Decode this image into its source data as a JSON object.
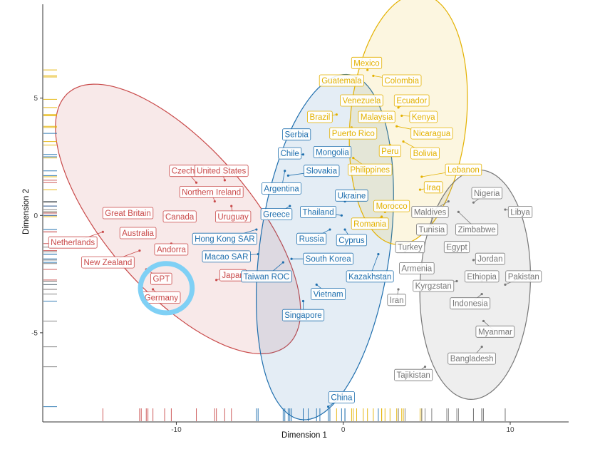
{
  "chart_data": {
    "type": "scatter",
    "xlabel": "Dimension 1",
    "ylabel": "Dimension 2",
    "xlim": [
      -18,
      13.5
    ],
    "ylim": [
      -8.8,
      9
    ],
    "x_ticks": [
      -10,
      0,
      10
    ],
    "y_ticks": [
      -5,
      0,
      5
    ],
    "grid": false,
    "colors": {
      "red": "#c94a4a",
      "blue": "#1f6fae",
      "yellow": "#e3b100",
      "gray": "#777777",
      "highlight": "#7fd0f5"
    },
    "clusters": [
      {
        "color": "red",
        "cx": -9.9,
        "cy": -0.15,
        "rx": 8.6,
        "ry": 3.6,
        "angle_deg": -35
      },
      {
        "color": "blue",
        "cx": -1.1,
        "cy": -1.35,
        "rx": 7.5,
        "ry": 3.85,
        "angle_deg": 77
      },
      {
        "color": "yellow",
        "cx": 3.9,
        "cy": 4.1,
        "rx": 5.4,
        "ry": 3.45,
        "angle_deg": 79
      },
      {
        "color": "gray",
        "cx": 7.9,
        "cy": -2.95,
        "rx": 4.9,
        "ry": 3.3,
        "angle_deg": 85
      }
    ],
    "highlight": {
      "label": "GPT",
      "cx": -10.6,
      "cy": -3.1,
      "rx": 1.55,
      "ry": 1.05
    },
    "points": [
      {
        "label": "Czechia",
        "color": "red",
        "x": -8.8,
        "y": 1.4,
        "lx": -9.4,
        "ly": 1.9
      },
      {
        "label": "United States",
        "color": "red",
        "x": -7.1,
        "y": 1.5,
        "lx": -7.3,
        "ly": 1.9
      },
      {
        "label": "Northern Ireland",
        "color": "red",
        "x": -7.7,
        "y": 0.6,
        "lx": -7.9,
        "ly": 1.0
      },
      {
        "label": "Great Britain",
        "color": "red",
        "x": -12.1,
        "y": 0.1,
        "lx": -12.9,
        "ly": 0.1
      },
      {
        "label": "Canada",
        "color": "red",
        "x": -10.7,
        "y": 0.0,
        "lx": -9.8,
        "ly": -0.05
      },
      {
        "label": "Uruguay",
        "color": "red",
        "x": -6.7,
        "y": 0.4,
        "lx": -6.6,
        "ly": -0.05
      },
      {
        "label": "Australia",
        "color": "red",
        "x": -11.7,
        "y": -0.7,
        "lx": -12.3,
        "ly": -0.75
      },
      {
        "label": "Netherlands",
        "color": "red",
        "x": -14.4,
        "y": -0.7,
        "lx": -16.2,
        "ly": -1.15
      },
      {
        "label": "Andorra",
        "color": "red",
        "x": -10.3,
        "y": -1.2,
        "lx": -10.3,
        "ly": -1.45
      },
      {
        "label": "New Zealand",
        "color": "red",
        "x": -12.2,
        "y": -1.5,
        "lx": -14.1,
        "ly": -2.0
      },
      {
        "label": "GPT",
        "color": "red",
        "x": -11.8,
        "y": -2.3,
        "lx": -10.9,
        "ly": -2.7
      },
      {
        "label": "Germany",
        "color": "red",
        "x": -11.4,
        "y": -3.15,
        "lx": -10.9,
        "ly": -3.5
      },
      {
        "label": "Japan",
        "color": "red",
        "x": -7.6,
        "y": -2.75,
        "lx": -6.6,
        "ly": -2.55
      },
      {
        "label": "Serbia",
        "color": "blue",
        "x": -2.1,
        "y": 3.5,
        "lx": -2.8,
        "ly": 3.45
      },
      {
        "label": "Mongolia",
        "color": "blue",
        "x": -1.4,
        "y": 2.5,
        "lx": -0.65,
        "ly": 2.7
      },
      {
        "label": "Chile",
        "color": "blue",
        "x": -2.4,
        "y": 2.6,
        "lx": -3.2,
        "ly": 2.65
      },
      {
        "label": "Slovakia",
        "color": "blue",
        "x": -3.3,
        "y": 1.7,
        "lx": -1.3,
        "ly": 1.9
      },
      {
        "label": "Argentina",
        "color": "blue",
        "x": -3.5,
        "y": 1.9,
        "lx": -3.7,
        "ly": 1.15
      },
      {
        "label": "Ukraine",
        "color": "blue",
        "x": 0.1,
        "y": 0.6,
        "lx": 0.5,
        "ly": 0.85
      },
      {
        "label": "Greece",
        "color": "blue",
        "x": -3.2,
        "y": 0.4,
        "lx": -4.0,
        "ly": 0.05
      },
      {
        "label": "Thailand",
        "color": "blue",
        "x": -0.1,
        "y": 0.0,
        "lx": -1.5,
        "ly": 0.15
      },
      {
        "label": "Hong Kong SAR",
        "color": "blue",
        "x": -5.2,
        "y": -0.6,
        "lx": -7.1,
        "ly": -1.0
      },
      {
        "label": "Russia",
        "color": "blue",
        "x": -0.8,
        "y": -0.6,
        "lx": -1.9,
        "ly": -1.0
      },
      {
        "label": "Cyprus",
        "color": "blue",
        "x": 0.1,
        "y": -0.6,
        "lx": 0.5,
        "ly": -1.05
      },
      {
        "label": "Macao SAR",
        "color": "blue",
        "x": -5.1,
        "y": -1.65,
        "lx": -7.0,
        "ly": -1.75
      },
      {
        "label": "South Korea",
        "color": "blue",
        "x": -3.1,
        "y": -1.85,
        "lx": -0.9,
        "ly": -1.85
      },
      {
        "label": "Taiwan ROC",
        "color": "blue",
        "x": -3.6,
        "y": -2.0,
        "lx": -4.6,
        "ly": -2.6
      },
      {
        "label": "Kazakhstan",
        "color": "blue",
        "x": 2.1,
        "y": -1.65,
        "lx": 1.6,
        "ly": -2.6
      },
      {
        "label": "Vietnam",
        "color": "blue",
        "x": -1.6,
        "y": -2.95,
        "lx": -0.9,
        "ly": -3.35
      },
      {
        "label": "Singapore",
        "color": "blue",
        "x": -2.4,
        "y": -3.65,
        "lx": -2.4,
        "ly": -4.25
      },
      {
        "label": "China",
        "color": "blue",
        "x": -0.9,
        "y": -8.15,
        "lx": -0.1,
        "ly": -7.75
      },
      {
        "label": "Mexico",
        "color": "yellow",
        "x": 1.45,
        "y": 6.2,
        "lx": 1.4,
        "ly": 6.5
      },
      {
        "label": "Guatemala",
        "color": "yellow",
        "x": 0.8,
        "y": 5.9,
        "lx": -0.1,
        "ly": 5.75
      },
      {
        "label": "Colombia",
        "color": "yellow",
        "x": 1.8,
        "y": 5.95,
        "lx": 3.5,
        "ly": 5.75
      },
      {
        "label": "Venezuela",
        "color": "yellow",
        "x": 1.2,
        "y": 4.95,
        "lx": 1.1,
        "ly": 4.9
      },
      {
        "label": "Ecuador",
        "color": "yellow",
        "x": 3.3,
        "y": 4.6,
        "lx": 4.1,
        "ly": 4.9
      },
      {
        "label": "Brazil",
        "color": "yellow",
        "x": -0.4,
        "y": 4.3,
        "lx": -1.4,
        "ly": 4.2
      },
      {
        "label": "Malaysia",
        "color": "yellow",
        "x": 2.3,
        "y": 4.25,
        "lx": 2.0,
        "ly": 4.2
      },
      {
        "label": "Kenya",
        "color": "yellow",
        "x": 3.5,
        "y": 4.25,
        "lx": 4.8,
        "ly": 4.2
      },
      {
        "label": "Puerto Rico",
        "color": "yellow",
        "x": 0.5,
        "y": 3.75,
        "lx": 0.6,
        "ly": 3.5
      },
      {
        "label": "Nicaragua",
        "color": "yellow",
        "x": 3.2,
        "y": 3.8,
        "lx": 5.3,
        "ly": 3.5
      },
      {
        "label": "Peru",
        "color": "yellow",
        "x": 2.8,
        "y": 3.0,
        "lx": 2.8,
        "ly": 2.75
      },
      {
        "label": "Bolivia",
        "color": "yellow",
        "x": 3.6,
        "y": 3.15,
        "lx": 4.9,
        "ly": 2.65
      },
      {
        "label": "Philippines",
        "color": "yellow",
        "x": 0.6,
        "y": 2.45,
        "lx": 1.6,
        "ly": 1.95
      },
      {
        "label": "Lebanon",
        "color": "yellow",
        "x": 4.7,
        "y": 1.65,
        "lx": 7.2,
        "ly": 1.95
      },
      {
        "label": "Iraq",
        "color": "yellow",
        "x": 4.6,
        "y": 1.1,
        "lx": 5.4,
        "ly": 1.2
      },
      {
        "label": "Morocco",
        "color": "yellow",
        "x": 2.5,
        "y": 0.15,
        "lx": 2.9,
        "ly": 0.4
      },
      {
        "label": "Romania",
        "color": "yellow",
        "x": 2.3,
        "y": -0.05,
        "lx": 1.6,
        "ly": -0.35
      },
      {
        "label": "Nigeria",
        "color": "gray",
        "x": 7.8,
        "y": 0.55,
        "lx": 8.6,
        "ly": 0.95
      },
      {
        "label": "Libya",
        "color": "gray",
        "x": 9.7,
        "y": 0.25,
        "lx": 10.6,
        "ly": 0.15
      },
      {
        "label": "Maldives",
        "color": "gray",
        "x": 6.3,
        "y": 0.6,
        "lx": 5.2,
        "ly": 0.15
      },
      {
        "label": "Tunisia",
        "color": "gray",
        "x": 5.3,
        "y": 0.15,
        "lx": 5.3,
        "ly": -0.6
      },
      {
        "label": "Zimbabwe",
        "color": "gray",
        "x": 6.9,
        "y": 0.15,
        "lx": 8.0,
        "ly": -0.6
      },
      {
        "label": "Turkey",
        "color": "gray",
        "x": 3.7,
        "y": -1.55,
        "lx": 4.0,
        "ly": -1.35
      },
      {
        "label": "Egypt",
        "color": "gray",
        "x": 6.2,
        "y": -1.35,
        "lx": 6.8,
        "ly": -1.35
      },
      {
        "label": "Jordan",
        "color": "gray",
        "x": 7.8,
        "y": -1.9,
        "lx": 8.8,
        "ly": -1.85
      },
      {
        "label": "Armenia",
        "color": "gray",
        "x": 4.7,
        "y": -2.05,
        "lx": 4.4,
        "ly": -2.25
      },
      {
        "label": "Ethiopia",
        "color": "gray",
        "x": 8.3,
        "y": -2.8,
        "lx": 8.3,
        "ly": -2.6
      },
      {
        "label": "Pakistan",
        "color": "gray",
        "x": 9.7,
        "y": -2.95,
        "lx": 10.8,
        "ly": -2.6
      },
      {
        "label": "Kyrgzstan",
        "color": "gray",
        "x": 6.8,
        "y": -2.8,
        "lx": 5.4,
        "ly": -3.0
      },
      {
        "label": "Iran",
        "color": "gray",
        "x": 3.3,
        "y": -3.15,
        "lx": 3.2,
        "ly": -3.6
      },
      {
        "label": "Indonesia",
        "color": "gray",
        "x": 8.3,
        "y": -3.35,
        "lx": 7.6,
        "ly": -3.75
      },
      {
        "label": "Myanmar",
        "color": "gray",
        "x": 8.4,
        "y": -4.5,
        "lx": 9.1,
        "ly": -4.95
      },
      {
        "label": "Bangladesh",
        "color": "gray",
        "x": 8.3,
        "y": -5.6,
        "lx": 7.7,
        "ly": -6.1
      },
      {
        "label": "Tajikistan",
        "color": "gray",
        "x": 4.9,
        "y": -6.45,
        "lx": 4.2,
        "ly": -6.8
      }
    ]
  }
}
